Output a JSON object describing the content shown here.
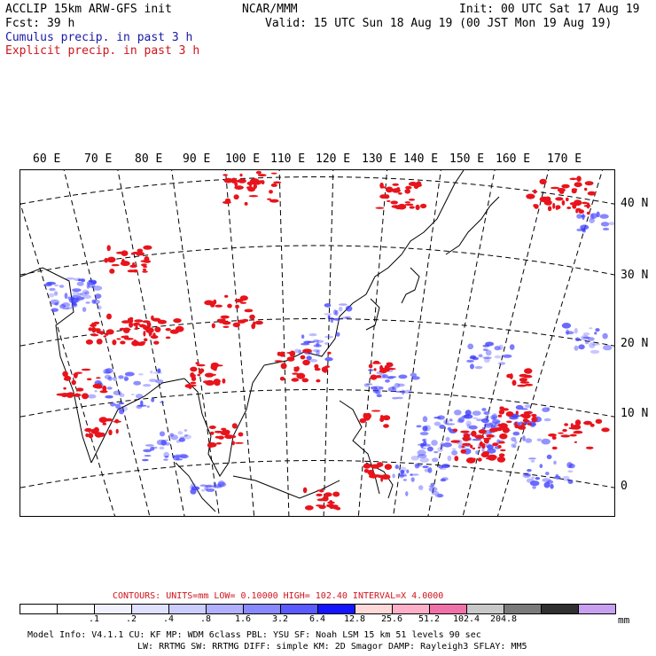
{
  "header": {
    "line1_left": "ACCLIP 15km ARW-GFS init",
    "line1_center": "NCAR/MMM",
    "line1_right": "Init: 00 UTC Sat 17 Aug 19",
    "line2_left": "Fcst:   39 h",
    "line2_right": "Valid: 15 UTC Sun 18 Aug 19 (00 JST Mon 19 Aug 19)",
    "legend_cumulus": "Cumulus precip. in past 3 h",
    "legend_explicit": "Explicit precip. in past 3 h"
  },
  "map": {
    "lon_labels": [
      "60 E",
      "70 E",
      "80 E",
      "90 E",
      "100 E",
      "110 E",
      "120 E",
      "130 E",
      "140 E",
      "150 E",
      "160 E",
      "170 E"
    ],
    "lat_labels": [
      "40 N",
      "30 N",
      "20 N",
      "10 N",
      "0"
    ]
  },
  "contours": {
    "label": "CONTOURS:  UNITS=mm  LOW= 0.10000      HIGH=  102.40      INTERVAL=X  4.0000"
  },
  "colorbar": {
    "colors": [
      "#ffffff",
      "#ffffff",
      "#f2f2ff",
      "#e0e0ff",
      "#cccdff",
      "#b0b0ff",
      "#8888ff",
      "#5a5aff",
      "#1414ff",
      "#ffd8d8",
      "#ffb0c8",
      "#f070a8",
      "#c8c8c8",
      "#7a7a7a",
      "#303030",
      "#c8a0f0"
    ],
    "ticks": [
      ".1",
      ".2",
      ".4",
      ".8",
      "1.6",
      "3.2",
      "6.4",
      "12.8",
      "25.6",
      "51.2",
      "102.4",
      "204.8"
    ],
    "unit": "mm"
  },
  "footer": {
    "line1": "Model Info: V4.1.1    CU: KF      MP: WDM 6class  PBL: YSU       SF: Noah LSM    15 km   51 levels   90 sec",
    "line2": "LW: RRTMG   SW: RRTMG   DIFF: simple KM: 2D Smagor DAMP: Rayleigh3  SFLAY: MM5"
  },
  "colors": {
    "cumulus": "#3a3aff",
    "explicit": "#e8141c"
  }
}
